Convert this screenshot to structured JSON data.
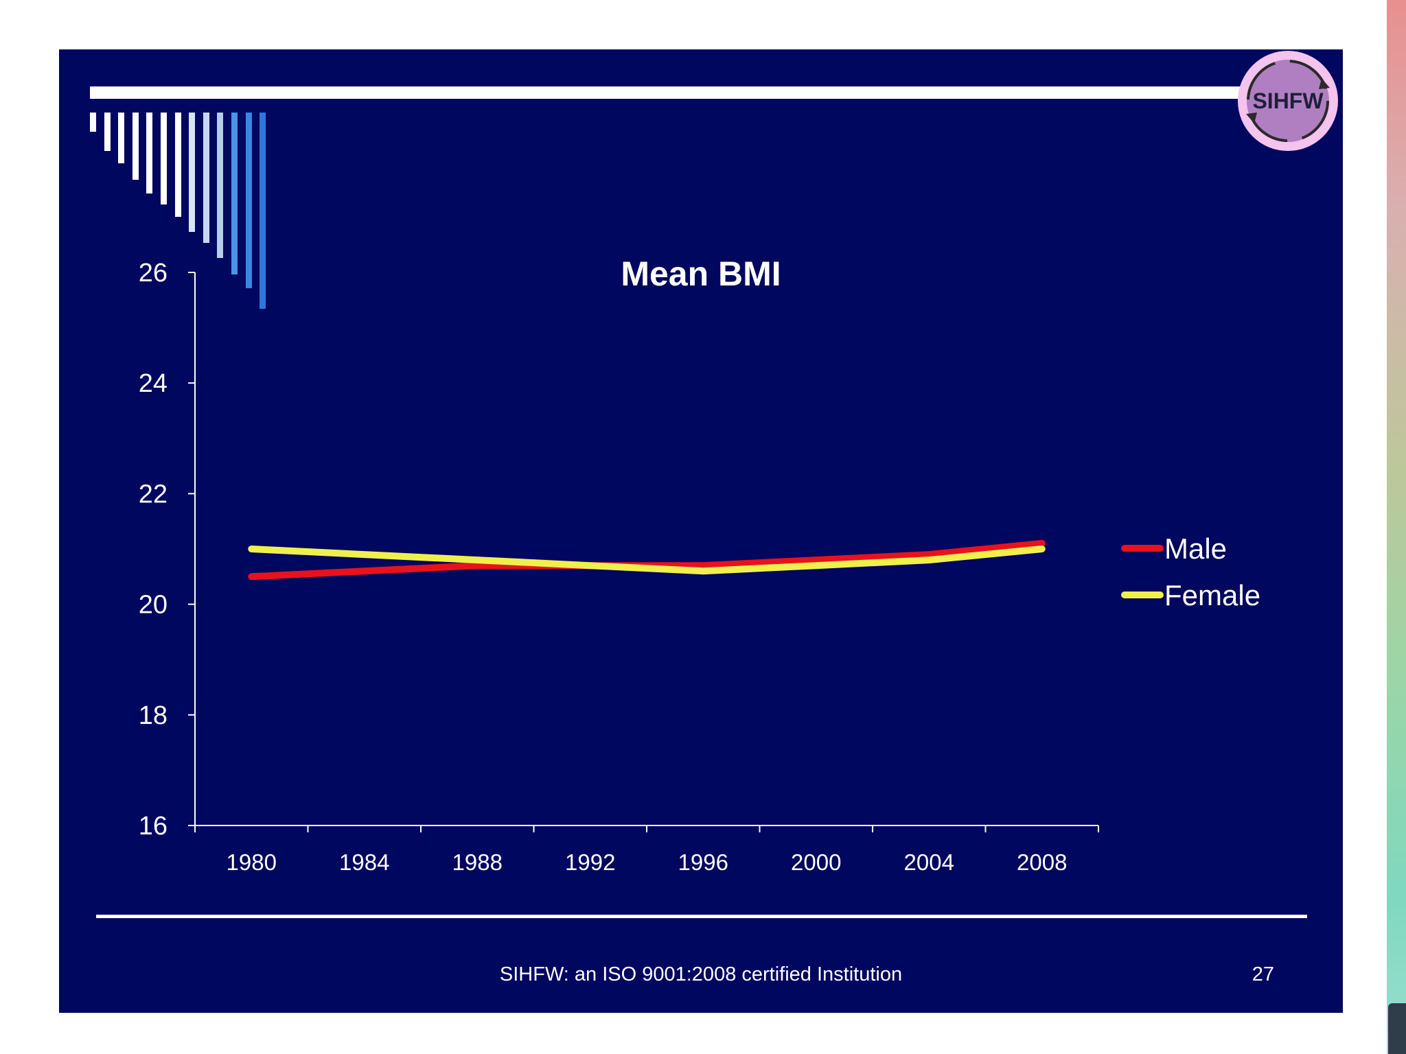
{
  "slide": {
    "footer": "SIHFW: an ISO 9001:2008 certified Institution",
    "page_number": "27",
    "logo_text": "SIHFW"
  },
  "colors": {
    "background": "#00075e",
    "male": "#e8121c",
    "female": "#f0f04c",
    "text": "#ffffff"
  },
  "chart_data": {
    "type": "line",
    "title": "Mean BMI",
    "xlabel": "",
    "ylabel": "",
    "categories": [
      "1980",
      "1984",
      "1988",
      "1992",
      "1996",
      "2000",
      "2004",
      "2008"
    ],
    "yticks": [
      "16",
      "18",
      "20",
      "22",
      "24",
      "26"
    ],
    "ylim": [
      16,
      26
    ],
    "legend_position": "right",
    "series": [
      {
        "name": "Male",
        "color": "#e8121c",
        "values": [
          20.5,
          20.6,
          20.7,
          20.7,
          20.7,
          20.8,
          20.9,
          21.1
        ]
      },
      {
        "name": "Female",
        "color": "#f0f04c",
        "values": [
          21.0,
          20.9,
          20.8,
          20.7,
          20.6,
          20.7,
          20.8,
          21.0
        ]
      }
    ]
  }
}
